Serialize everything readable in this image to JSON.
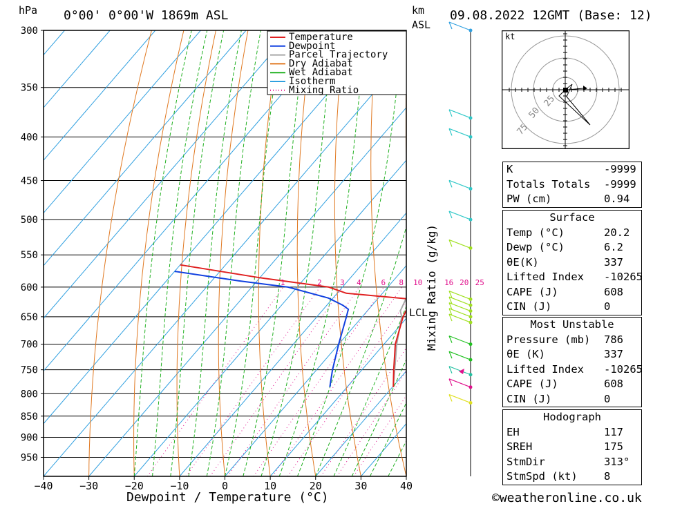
{
  "header": {
    "hpa_unit": "hPa",
    "location": "0°00' 0°00'W 1869m ASL",
    "km_unit": "km",
    "asl_unit": "ASL",
    "datetime": "09.08.2022 12GMT (Base: 12)"
  },
  "chart_data": {
    "type": "skew-t",
    "xlabel": "Dewpoint / Temperature (°C)",
    "ylabel": "hPa",
    "mixing_ratio_label": "Mixing Ratio (g/kg)",
    "lcl_label": "LCL",
    "temperature_ticks": [
      -40,
      -30,
      -20,
      -10,
      0,
      10,
      20,
      30,
      40
    ],
    "pressure_ticks": [
      300,
      350,
      400,
      450,
      500,
      550,
      600,
      650,
      700,
      750,
      800,
      850,
      900,
      950
    ],
    "mixing_ratio_values": [
      "1",
      "2",
      "3",
      "4",
      "6",
      "8",
      "10",
      "16",
      "20",
      "25"
    ],
    "ylim": [
      300,
      1000
    ],
    "xlim": [
      -40,
      40
    ],
    "legend": [
      "Temperature",
      "Dewpoint",
      "Parcel Trajectory",
      "Dry Adiabat",
      "Wet Adiabat",
      "Isotherm",
      "Mixing Ratio"
    ],
    "legend_position": "top-right",
    "colors": {
      "temperature": "#e02020",
      "dewpoint": "#1040e0",
      "parcel": "#a8a8a8",
      "dry_adiabat": "#e07820",
      "wet_adiabat": "#20b020",
      "isotherm": "#30a0e0",
      "mixing_ratio": "#e0108c"
    },
    "temperature_profile": [
      {
        "p": 786,
        "t": 20.2
      },
      {
        "p": 750,
        "t": 17.0
      },
      {
        "p": 700,
        "t": 12.5
      },
      {
        "p": 650,
        "t": 9.0
      },
      {
        "p": 620,
        "t": 7.6
      },
      {
        "p": 610,
        "t": -8.0
      },
      {
        "p": 600,
        "t": -13.0
      },
      {
        "p": 585,
        "t": -30.0
      },
      {
        "p": 565,
        "t": -50.0
      }
    ],
    "dewpoint_profile": [
      {
        "p": 786,
        "t": 6.2
      },
      {
        "p": 750,
        "t": 3.5
      },
      {
        "p": 700,
        "t": 0.0
      },
      {
        "p": 650,
        "t": -3.5
      },
      {
        "p": 637,
        "t": -4.5
      },
      {
        "p": 630,
        "t": -6.5
      },
      {
        "p": 618,
        "t": -11.0
      },
      {
        "p": 600,
        "t": -22.0
      },
      {
        "p": 590,
        "t": -34.0
      },
      {
        "p": 575,
        "t": -50.0
      }
    ],
    "parcel_profile": [
      {
        "p": 786,
        "t": 20.2
      },
      {
        "p": 700,
        "t": 12.8
      },
      {
        "p": 650,
        "t": 8.7
      },
      {
        "p": 640,
        "t": 7.3
      },
      {
        "p": 600,
        "t": 5.2
      },
      {
        "p": 550,
        "t": 2.0
      },
      {
        "p": 500,
        "t": -2.2
      },
      {
        "p": 450,
        "t": -7.5
      },
      {
        "p": 400,
        "t": -13.5
      },
      {
        "p": 350,
        "t": -21.0
      },
      {
        "p": 300,
        "t": -30.5
      }
    ]
  },
  "indices": {
    "general": [
      {
        "label": "K",
        "value": "-9999"
      },
      {
        "label": "Totals Totals",
        "value": "-9999"
      },
      {
        "label": "PW (cm)",
        "value": "0.94"
      }
    ],
    "surface_title": "Surface",
    "surface": [
      {
        "label": "Temp (°C)",
        "value": "20.2"
      },
      {
        "label": "Dewp (°C)",
        "value": "6.2"
      },
      {
        "label": "θE(K)",
        "value": "337"
      },
      {
        "label": "Lifted Index",
        "value": "-10265"
      },
      {
        "label": "CAPE (J)",
        "value": "608"
      },
      {
        "label": "CIN (J)",
        "value": "0"
      }
    ],
    "most_unstable_title": "Most Unstable",
    "most_unstable": [
      {
        "label": "Pressure (mb)",
        "value": "786"
      },
      {
        "label": "θE (K)",
        "value": "337"
      },
      {
        "label": "Lifted Index",
        "value": "-10265"
      },
      {
        "label": "CAPE (J)",
        "value": "608"
      },
      {
        "label": "CIN (J)",
        "value": "0"
      }
    ],
    "hodograph_title": "Hodograph",
    "hodograph": [
      {
        "label": "EH",
        "value": "117"
      },
      {
        "label": "SREH",
        "value": "175"
      },
      {
        "label": "StmDir",
        "value": "313°"
      },
      {
        "label": "StmSpd (kt)",
        "value": "8"
      }
    ]
  },
  "hodograph_plot": {
    "unit_label": "kt",
    "ring_labels": [
      "25",
      "50",
      "75"
    ]
  },
  "copyright": "©weatheronline.co.uk"
}
